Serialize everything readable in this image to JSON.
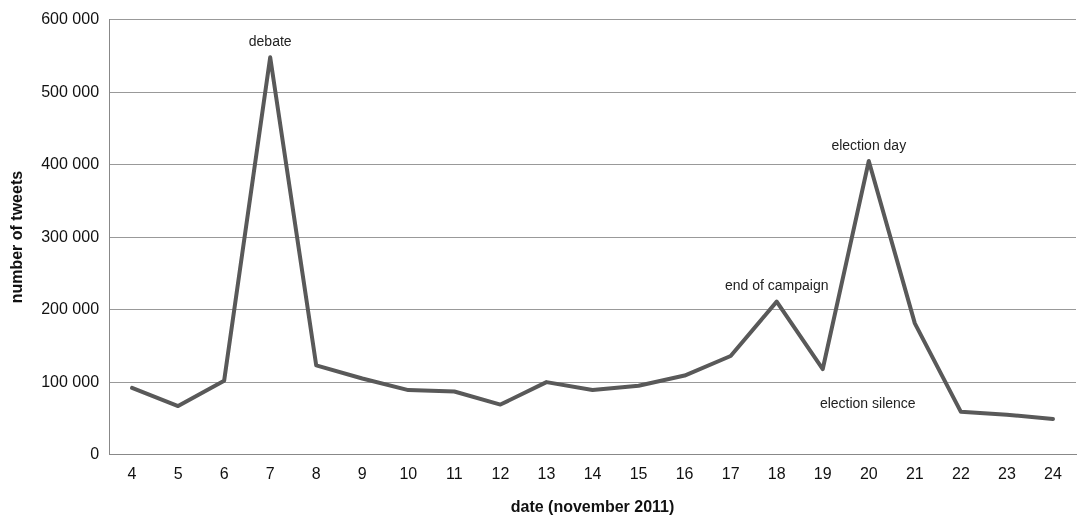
{
  "chart_data": {
    "type": "line",
    "xlabel": "date (november 2011)",
    "ylabel": "number of tweets",
    "categories": [
      "4",
      "5",
      "6",
      "7",
      "8",
      "9",
      "10",
      "11",
      "12",
      "13",
      "14",
      "15",
      "16",
      "17",
      "18",
      "19",
      "20",
      "21",
      "22",
      "23",
      "24"
    ],
    "series": [
      {
        "color": "#595959",
        "values": [
          92000,
          67000,
          102000,
          548000,
          123000,
          105000,
          89000,
          87000,
          69000,
          100000,
          89000,
          95000,
          109000,
          136000,
          211000,
          118000,
          405000,
          181000,
          59000,
          55000,
          49000
        ]
      }
    ],
    "ylim": [
      0,
      600000
    ],
    "yticks": [
      {
        "value": 0,
        "label": "0"
      },
      {
        "value": 100000,
        "label": "100 000"
      },
      {
        "value": 200000,
        "label": "200 000"
      },
      {
        "value": 300000,
        "label": "300 000"
      },
      {
        "value": 400000,
        "label": "400 000"
      },
      {
        "value": 500000,
        "label": "500 000"
      },
      {
        "value": 600000,
        "label": "600 000"
      }
    ],
    "grid": "y",
    "legend": false,
    "marker": "none",
    "line_style": "solid",
    "annotations": [
      {
        "text": "debate",
        "x": "7",
        "y": 548000
      },
      {
        "text": "end of campaign",
        "x": "18",
        "y": 211000
      },
      {
        "text": "election silence",
        "x": "19",
        "y": 118000
      },
      {
        "text": "election day",
        "x": "20",
        "y": 405000
      }
    ]
  }
}
